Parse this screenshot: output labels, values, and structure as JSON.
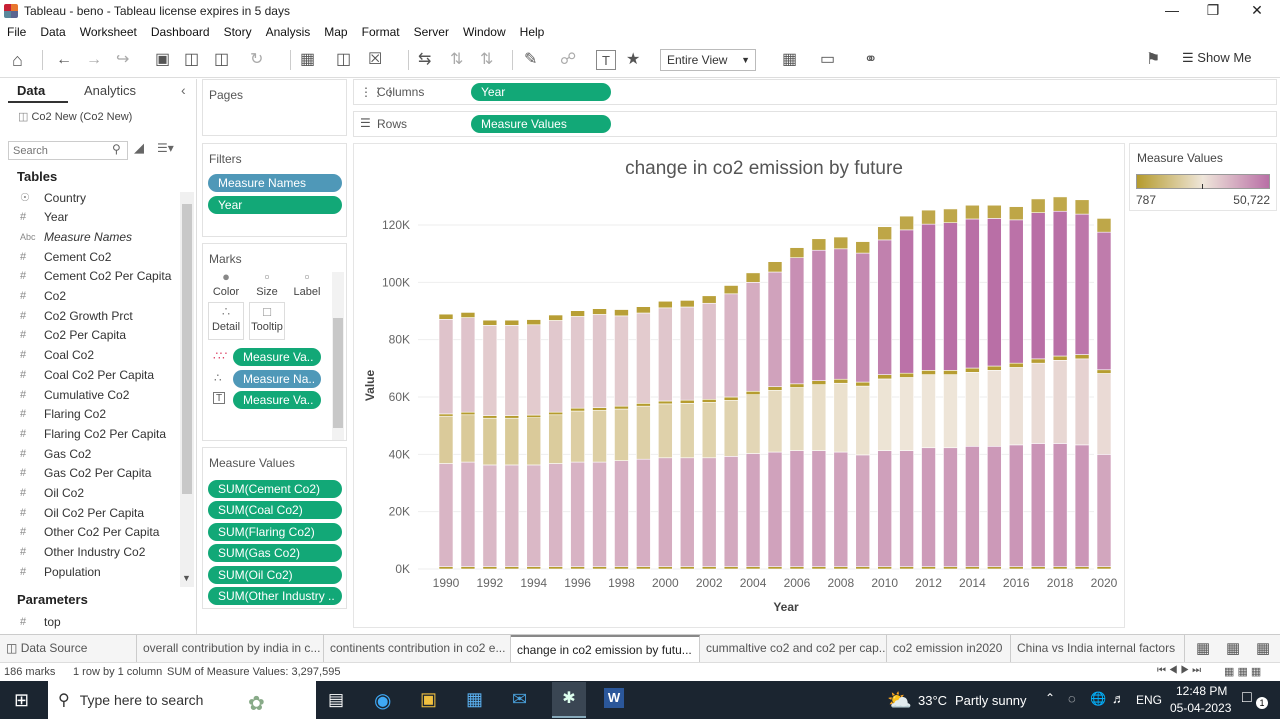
{
  "window": {
    "title": "Tableau - beno - Tableau license expires in 5 days"
  },
  "menu": [
    "File",
    "Data",
    "Worksheet",
    "Dashboard",
    "Story",
    "Analysis",
    "Map",
    "Format",
    "Server",
    "Window",
    "Help"
  ],
  "toolbar": {
    "fit": "Entire View",
    "show_me": "Show Me"
  },
  "data_pane": {
    "tab_data": "Data",
    "tab_analytics": "Analytics",
    "datasource": "Co2 New (Co2 New)",
    "search_placeholder": "Search",
    "tables_header": "Tables",
    "fields": [
      {
        "icon": "globe-icon",
        "name": "Country"
      },
      {
        "icon": "number-icon",
        "name": "Year"
      },
      {
        "icon": "abc-icon",
        "name": "Measure Names"
      },
      {
        "icon": "number-icon",
        "name": "Cement Co2"
      },
      {
        "icon": "number-icon",
        "name": "Cement Co2 Per Capita"
      },
      {
        "icon": "number-icon",
        "name": "Co2"
      },
      {
        "icon": "number-icon",
        "name": "Co2 Growth Prct"
      },
      {
        "icon": "number-icon",
        "name": "Co2 Per Capita"
      },
      {
        "icon": "number-icon",
        "name": "Coal Co2"
      },
      {
        "icon": "number-icon",
        "name": "Coal Co2 Per Capita"
      },
      {
        "icon": "number-icon",
        "name": "Cumulative Co2"
      },
      {
        "icon": "number-icon",
        "name": "Flaring Co2"
      },
      {
        "icon": "number-icon",
        "name": "Flaring Co2 Per Capita"
      },
      {
        "icon": "number-icon",
        "name": "Gas Co2"
      },
      {
        "icon": "number-icon",
        "name": "Gas Co2 Per Capita"
      },
      {
        "icon": "number-icon",
        "name": "Oil Co2"
      },
      {
        "icon": "number-icon",
        "name": "Oil Co2 Per Capita"
      },
      {
        "icon": "number-icon",
        "name": "Other Co2 Per Capita"
      },
      {
        "icon": "number-icon",
        "name": "Other Industry Co2"
      },
      {
        "icon": "number-icon",
        "name": "Population"
      }
    ],
    "parameters_header": "Parameters",
    "parameters": [
      "top"
    ]
  },
  "shelves": {
    "pages": "Pages",
    "filters": "Filters",
    "filter_pills": [
      "Measure Names",
      "Year"
    ],
    "marks": "Marks",
    "mark_buttons": [
      "Color",
      "Size",
      "Label",
      "Detail",
      "Tooltip"
    ],
    "mark_pills": [
      "Measure Va..",
      "Measure Na..",
      "Measure Va.."
    ],
    "measure_values": "Measure Values",
    "measure_pills": [
      "SUM(Cement Co2)",
      "SUM(Coal Co2)",
      "SUM(Flaring Co2)",
      "SUM(Gas Co2)",
      "SUM(Oil Co2)",
      "SUM(Other Industry .."
    ],
    "columns_label": "Columns",
    "columns_pill": "Year",
    "rows_label": "Rows",
    "rows_pill": "Measure Values"
  },
  "legend": {
    "title": "Measure Values",
    "min": "787",
    "max": "50,722",
    "color_low": "#b59b2d",
    "color_high": "#b96fa6"
  },
  "chart_data": {
    "type": "bar",
    "stacked": true,
    "title": "change in co2 emission by future",
    "xlabel": "Year",
    "ylabel": "Value",
    "ylim": [
      0,
      128000
    ],
    "yticks": [
      "0K",
      "20K",
      "40K",
      "60K",
      "80K",
      "100K",
      "120K"
    ],
    "x_tick_labels": [
      "1990",
      "1992",
      "1994",
      "1996",
      "1998",
      "2000",
      "2002",
      "2004",
      "2006",
      "2008",
      "2010",
      "2012",
      "2014",
      "2016",
      "2018",
      "2020"
    ],
    "categories": [
      1990,
      1991,
      1992,
      1993,
      1994,
      1995,
      1996,
      1997,
      1998,
      1999,
      2000,
      2001,
      2002,
      2003,
      2004,
      2005,
      2006,
      2007,
      2008,
      2009,
      2010,
      2011,
      2012,
      2013,
      2014,
      2015,
      2016,
      2017,
      2018,
      2019,
      2020
    ],
    "series": [
      {
        "values": [
          800,
          800,
          800,
          800,
          800,
          800,
          800,
          800,
          800,
          800,
          800,
          800,
          800,
          800,
          800,
          800,
          800,
          800,
          800,
          800,
          800,
          800,
          800,
          800,
          800,
          800,
          800,
          800,
          800,
          800,
          800
        ]
      },
      {
        "values": [
          36000,
          36500,
          35500,
          35500,
          35500,
          36000,
          36500,
          36500,
          37000,
          37500,
          38000,
          38000,
          38000,
          38500,
          39500,
          40000,
          40500,
          40500,
          40000,
          39000,
          40500,
          40500,
          41500,
          41500,
          42000,
          42000,
          42500,
          43000,
          43000,
          42500,
          39200
        ]
      },
      {
        "values": [
          16500,
          16500,
          16300,
          16300,
          16500,
          17000,
          17800,
          18000,
          18000,
          18500,
          18800,
          19000,
          19300,
          19500,
          20500,
          21500,
          22000,
          23000,
          24000,
          24000,
          25000,
          25500,
          25500,
          25500,
          25800,
          26500,
          27000,
          28000,
          29000,
          30000,
          28200
        ]
      },
      {
        "values": [
          800,
          900,
          900,
          900,
          900,
          900,
          1000,
          1000,
          1000,
          1000,
          1000,
          1100,
          1100,
          1200,
          1200,
          1300,
          1300,
          1400,
          1400,
          1400,
          1500,
          1500,
          1500,
          1500,
          1500,
          1500,
          1500,
          1500,
          1500,
          1500,
          1300
        ]
      },
      {
        "values": [
          33000,
          33000,
          31500,
          31500,
          31500,
          32000,
          32000,
          32500,
          31500,
          31500,
          32500,
          32500,
          33500,
          36000,
          38000,
          40000,
          44000,
          45500,
          45500,
          45000,
          47000,
          50000,
          51000,
          51500,
          52000,
          51500,
          50000,
          51000,
          50500,
          49000,
          48000
        ]
      },
      {
        "values": [
          1800,
          1800,
          1800,
          1800,
          1800,
          1900,
          2000,
          2000,
          2200,
          2200,
          2300,
          2300,
          2600,
          2900,
          3300,
          3600,
          3500,
          4000,
          4100,
          4000,
          4600,
          4800,
          4900,
          4800,
          4800,
          4600,
          4600,
          4800,
          5000,
          5000,
          4800
        ]
      }
    ]
  },
  "sheet_tabs": {
    "data_source": "Data Source",
    "tabs": [
      "overall contribution  by india in c...",
      "continents contribution in co2 e...",
      "change in co2 emission by futu...",
      "cummaltive co2 and co2 per cap...",
      "co2 emission in2020",
      "China vs India internal factors"
    ],
    "active": 2
  },
  "status": {
    "marks": "186 marks",
    "rows": "1 row by 1 column",
    "sum": "SUM of Measure Values: 3,297,595"
  },
  "taskbar": {
    "search_placeholder": "Type here to search",
    "weather_temp": "33°C",
    "weather_desc": "Partly sunny",
    "lang": "ENG",
    "time": "12:48 PM",
    "date": "05-04-2023",
    "notifications": "1"
  }
}
